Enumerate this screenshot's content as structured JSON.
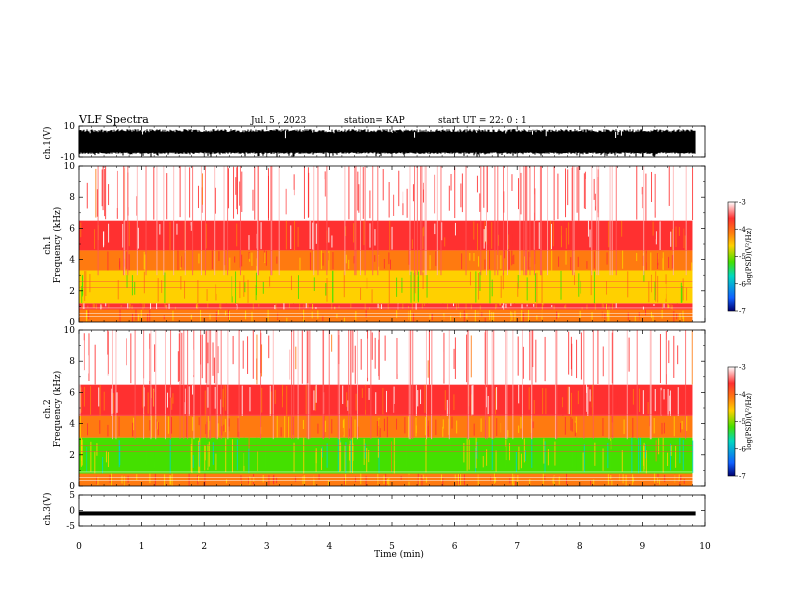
{
  "header": {
    "title": "VLF Spectra",
    "date": "Jul. 5 , 2023",
    "station": "station= KAP",
    "start": "start UT =  22: 0  : 1"
  },
  "colors": {
    "colormap": [
      "#ffffff",
      "#ff3030",
      "#ff7a10",
      "#ffd000",
      "#44e000",
      "#00d8c0",
      "#1060ff",
      "#000070"
    ],
    "trace": "#000000"
  },
  "chart_data": [
    {
      "type": "line",
      "name": "ch1-waveform",
      "ylabel": "ch.1(V)",
      "ylim": [
        -10,
        10
      ],
      "yticks": [
        "10",
        "-10"
      ],
      "xlim": [
        0,
        10
      ],
      "note_values": "dense oscillating waveform mostly within about -8 to +8 V, occasional dips toward -10 V"
    },
    {
      "type": "heatmap",
      "name": "ch1-spectrogram",
      "ylabel": "ch.1 Frequency (kHz)",
      "ylim": [
        0,
        10
      ],
      "yticks": [
        "0",
        "2",
        "4",
        "6",
        "8",
        "10"
      ],
      "xlim": [
        0,
        9.8
      ],
      "colorbar": {
        "label": "log(PSD)(V²/Hz)",
        "ticks": [
          "-3",
          "-4",
          "-5",
          "-6",
          "-7"
        ],
        "range": [
          -7,
          -3
        ]
      },
      "bands_khz": [
        {
          "from": 0,
          "to": 0.8,
          "level": -4.3
        },
        {
          "from": 0.8,
          "to": 1.2,
          "level": -3.8
        },
        {
          "from": 1.2,
          "to": 3.3,
          "level": -4.7
        },
        {
          "from": 3.3,
          "to": 4.6,
          "level": -4.1
        },
        {
          "from": 4.6,
          "to": 6.5,
          "level": -3.6
        },
        {
          "from": 6.5,
          "to": 10,
          "level": -3.2
        }
      ]
    },
    {
      "type": "heatmap",
      "name": "ch2-spectrogram",
      "ylabel": "ch.2 Frequency (kHz)",
      "ylim": [
        0,
        10
      ],
      "yticks": [
        "0",
        "2",
        "4",
        "6",
        "8",
        "10"
      ],
      "xlim": [
        0,
        9.8
      ],
      "colorbar": {
        "label": "log(PSD)(V²/Hz)",
        "ticks": [
          "-3",
          "-4",
          "-5",
          "-6",
          "-7"
        ],
        "range": [
          -7,
          -3
        ]
      },
      "bands_khz": [
        {
          "from": 0,
          "to": 0.8,
          "level": -4.2
        },
        {
          "from": 0.8,
          "to": 3.1,
          "level": -5.1
        },
        {
          "from": 3.1,
          "to": 4.5,
          "level": -4.1
        },
        {
          "from": 4.5,
          "to": 6.5,
          "level": -3.6
        },
        {
          "from": 6.5,
          "to": 10,
          "level": -3.2
        }
      ]
    },
    {
      "type": "line",
      "name": "ch3-waveform",
      "ylabel": "ch.3(V)",
      "ylim": [
        -5,
        5
      ],
      "yticks": [
        "5",
        "0",
        "-5"
      ],
      "xlim": [
        0,
        10
      ],
      "note_values": "near-constant band around -1 V with small amplitude"
    }
  ],
  "xaxis": {
    "label": "Time  (min)",
    "ticks": [
      "0",
      "1",
      "2",
      "3",
      "4",
      "5",
      "6",
      "7",
      "8",
      "9",
      "10"
    ]
  }
}
